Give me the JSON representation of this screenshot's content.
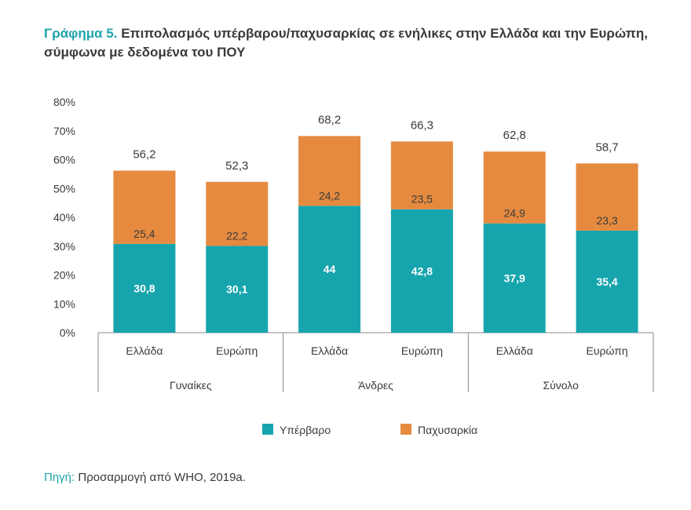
{
  "title": {
    "lead": "Γράφημα 5.",
    "text": "Επιπολασμός υπέρβαρου/παχυσαρκίας σε ενήλικες στην Ελλάδα και την Ευρώπη, σύμφωνα με δεδομένα του ΠΟΥ"
  },
  "source": {
    "lead": "Πηγή:",
    "text": "Προσαρμογή από WHO, 2019a."
  },
  "colors": {
    "overweight": "#17a5ad",
    "obesity": "#e58a3f",
    "text": "#3a3a3a",
    "axis": "#8a8a8a"
  },
  "chart_data": {
    "type": "bar",
    "stacked": true,
    "title": "Επιπολασμός υπέρβαρου/παχυσαρκίας σε ενήλικες στην Ελλάδα και την Ευρώπη, σύμφωνα με δεδομένα του ΠΟΥ",
    "categories": [
      "Ελλάδα",
      "Ευρώπη",
      "Ελλάδα",
      "Ευρώπη",
      "Ελλάδα",
      "Ευρώπη"
    ],
    "groups": [
      {
        "label": "Γυναίκες",
        "count": 2
      },
      {
        "label": "Άνδρες",
        "count": 2
      },
      {
        "label": "Σύνολο",
        "count": 2
      }
    ],
    "series": [
      {
        "name": "Υπέρβαρο",
        "labels": [
          "30,8",
          "30,1",
          "44",
          "42,8",
          "37,9",
          "35,4"
        ],
        "values": [
          30.8,
          30.1,
          44,
          42.8,
          37.9,
          35.4
        ]
      },
      {
        "name": "Παχυσαρκία",
        "labels": [
          "25,4",
          "22,2",
          "24,2",
          "23,5",
          "24,9",
          "23,3"
        ],
        "values": [
          25.4,
          22.2,
          24.2,
          23.5,
          24.9,
          23.3
        ]
      }
    ],
    "totals": [
      "56,2",
      "52,3",
      "68,2",
      "66,3",
      "62,8",
      "58,7"
    ],
    "yticks": [
      "0%",
      "10%",
      "20%",
      "30%",
      "40%",
      "50%",
      "60%",
      "70%",
      "80%"
    ],
    "ylim": [
      0,
      80
    ],
    "legend": "bottom"
  }
}
